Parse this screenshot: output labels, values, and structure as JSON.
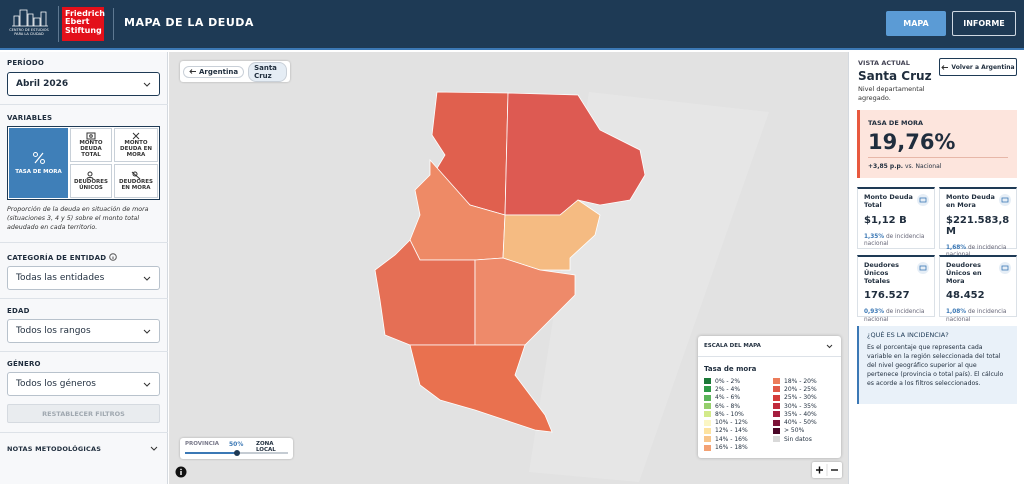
{
  "header": {
    "logo_text": "CENTRO DE ESTUDIOS PARA LA CIUDAD",
    "brand": "Friedrich Ebert Stiftung",
    "title": "MAPA DE LA DEUDA",
    "tabs": [
      "MAPA",
      "INFORME"
    ]
  },
  "sidebar": {
    "period_label": "PERÍODO",
    "period": "Abril 2026",
    "variables_label": "VARIABLES",
    "variables": [
      "TASA DE MORA",
      "MONTO DEUDA TOTAL",
      "MONTO DEUDA EN MORA",
      "DEUDORES ÚNICOS",
      "DEUDORES EN MORA"
    ],
    "description": "Proporción de la deuda en situación de mora (situaciones 3, 4 y 5) sobre el monto total adeudado en cada territorio.",
    "entity_label": "CATEGORÍA DE ENTIDAD",
    "entity": "Todas las entidades",
    "age_label": "EDAD",
    "age": "Todos los rangos",
    "gender_label": "GÉNERO",
    "gender": "Todos los géneros",
    "reset": "RESTABLECER FILTROS",
    "notes": "NOTAS METODOLÓGICAS"
  },
  "map": {
    "breadcrumb": [
      "Argentina",
      "Santa Cruz"
    ],
    "slider": {
      "left": "PROVINCIA",
      "value": "50%",
      "right": "ZONA LOCAL"
    },
    "legend": {
      "title": "ESCALA DEL MAPA",
      "subtitle": "Tasa de mora",
      "items": [
        {
          "label": "0% - 2%",
          "color": "#1b7837"
        },
        {
          "label": "2% - 4%",
          "color": "#2f9a47"
        },
        {
          "label": "4% - 6%",
          "color": "#5bb55a"
        },
        {
          "label": "6% - 8%",
          "color": "#95cf6c"
        },
        {
          "label": "8% - 10%",
          "color": "#d3ea8a"
        },
        {
          "label": "10% - 12%",
          "color": "#fbf6c4"
        },
        {
          "label": "12% - 14%",
          "color": "#fde3a0"
        },
        {
          "label": "14% - 16%",
          "color": "#f8c58a"
        },
        {
          "label": "16% - 18%",
          "color": "#f3a173"
        },
        {
          "label": "18% - 20%",
          "color": "#ec7c5a"
        },
        {
          "label": "20% - 25%",
          "color": "#e05a48"
        },
        {
          "label": "25% - 30%",
          "color": "#d43c3a"
        },
        {
          "label": "30% - 35%",
          "color": "#c12a3b"
        },
        {
          "label": "35% - 40%",
          "color": "#a51e3f"
        },
        {
          "label": "40% - 50%",
          "color": "#7c1238"
        },
        {
          "label": "> 50%",
          "color": "#4a0626"
        },
        {
          "label": "Sin datos",
          "color": "#d9d9d9"
        }
      ]
    }
  },
  "panel": {
    "view_label": "VISTA ACTUAL",
    "region": "Santa Cruz",
    "level": "Nivel departamental agregado.",
    "back": "Volver a Argentina",
    "main": {
      "label": "TASA DE MORA",
      "value": "19,76%",
      "delta": "+3,85 p.p.",
      "delta_text": "vs. Nacional"
    },
    "cards": [
      {
        "label": "Monto Deuda Total",
        "value": "$1,12 B",
        "share": "1,35%",
        "share_text": "de incidencia nacional"
      },
      {
        "label": "Monto Deuda en Mora",
        "value": "$221.583,8 M",
        "share": "1,68%",
        "share_text": "de incidencia nacional"
      },
      {
        "label": "Deudores Únicos Totales",
        "value": "176.527",
        "share": "0,93%",
        "share_text": "de incidencia nacional"
      },
      {
        "label": "Deudores Únicos en Mora",
        "value": "48.452",
        "share": "1,08%",
        "share_text": "de incidencia nacional"
      }
    ],
    "info": {
      "title": "¿QUÉ ES LA INCIDENCIA?",
      "text": "Es el porcentaje que representa cada variable en la región seleccionada del total del nivel geográfico superior al que pertenece (provincia o total país). El cálculo es acorde a los filtros seleccionados."
    }
  }
}
